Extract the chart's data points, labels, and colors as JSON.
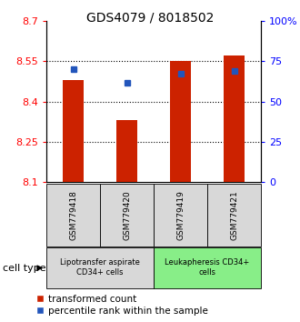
{
  "title": "GDS4079 / 8018502",
  "samples": [
    "GSM779418",
    "GSM779420",
    "GSM779419",
    "GSM779421"
  ],
  "bar_values": [
    8.48,
    8.33,
    8.55,
    8.57
  ],
  "bar_bottom": 8.1,
  "percentile_values": [
    8.52,
    8.47,
    8.505,
    8.512
  ],
  "bar_color": "#cc2200",
  "blue_color": "#2255bb",
  "ylim": [
    8.1,
    8.7
  ],
  "yticks_left": [
    8.1,
    8.25,
    8.4,
    8.55,
    8.7
  ],
  "yticks_right": [
    0,
    25,
    50,
    75,
    100
  ],
  "grid_values": [
    8.25,
    8.4,
    8.55
  ],
  "group1_label": "Lipotransfer aspirate\nCD34+ cells",
  "group2_label": "Leukapheresis CD34+\ncells",
  "group1_indices": [
    0,
    1
  ],
  "group2_indices": [
    2,
    3
  ],
  "group1_color": "#d8d8d8",
  "group2_color": "#88ee88",
  "cell_type_label": "cell type",
  "legend1": "transformed count",
  "legend2": "percentile rank within the sample",
  "bar_width": 0.4,
  "title_fontsize": 10,
  "tick_fontsize": 8,
  "legend_fontsize": 7.5
}
